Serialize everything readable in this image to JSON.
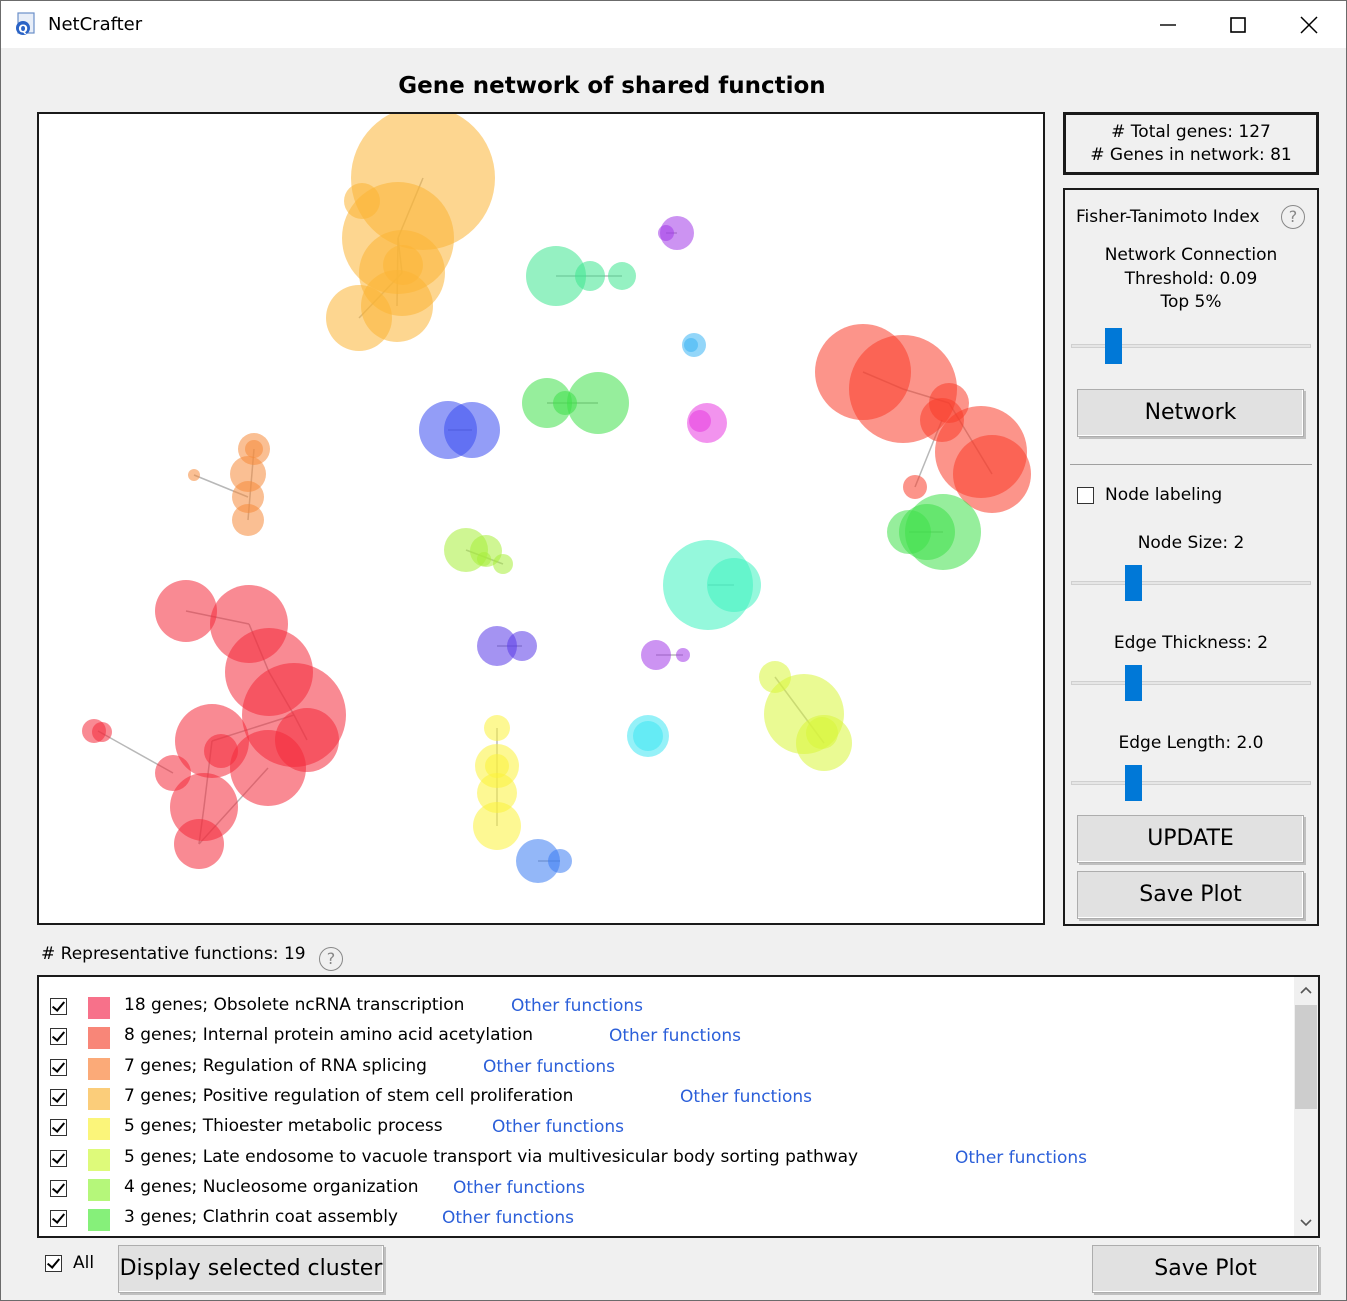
{
  "window": {
    "title": "NetCrafter"
  },
  "plot": {
    "title": "Gene network of shared function"
  },
  "stats": {
    "total_genes": "# Total genes: 127",
    "genes_in_network": "# Genes in network: 81"
  },
  "controls": {
    "index_label": "Fisher-Tanimoto Index",
    "threshold_line1": "Network Connection",
    "threshold_line2": "Threshold: 0.09",
    "threshold_line3": "Top 5%",
    "network_button": "Network",
    "node_labeling": "Node labeling",
    "node_labeling_checked": false,
    "node_size_label": "Node Size: 2",
    "edge_thickness_label": "Edge Thickness: 2",
    "edge_length_label": "Edge Length: 2.0",
    "update_button": "UPDATE",
    "save_plot_button": "Save Plot",
    "help_symbol": "?"
  },
  "functions": {
    "label": "# Representative functions: 19",
    "link_text": "Other functions",
    "items": [
      {
        "text": "18 genes; Obsolete ncRNA transcription",
        "color": "#f7718a",
        "checked": true
      },
      {
        "text": "8 genes; Internal protein amino acid acetylation",
        "color": "#f88678",
        "checked": true
      },
      {
        "text": "7 genes; Regulation of RNA splicing",
        "color": "#fbaa78",
        "checked": true
      },
      {
        "text": "7 genes; Positive regulation of stem cell proliferation",
        "color": "#fbcd7a",
        "checked": true
      },
      {
        "text": "5 genes; Thioester metabolic process",
        "color": "#fbf57a",
        "checked": true
      },
      {
        "text": "5 genes; Late endosome to vacuole transport via multivesicular body sorting pathway",
        "color": "#defa7a",
        "checked": true
      },
      {
        "text": "4 genes; Nucleosome organization",
        "color": "#b5f77a",
        "checked": true
      },
      {
        "text": "3 genes; Clathrin coat assembly",
        "color": "#86f07a",
        "checked": true
      }
    ]
  },
  "bottom": {
    "all_label": "All",
    "all_checked": true,
    "display_button": "Display selected cluster",
    "save_plot_button": "Save Plot"
  },
  "icons": [
    "app-icon",
    "minimize-icon",
    "maximize-icon",
    "close-icon",
    "help-icon",
    "scroll-up-icon",
    "scroll-down-icon"
  ],
  "clusters": [
    {
      "name": "cluster-orange-yellow",
      "color": "#fbb534"
    },
    {
      "name": "cluster-red",
      "color": "#f4293a"
    },
    {
      "name": "cluster-red-orange",
      "color": "#f93d2a"
    },
    {
      "name": "cluster-orange",
      "color": "#f68a3a"
    },
    {
      "name": "cluster-yellow",
      "color": "#fbf23a"
    },
    {
      "name": "cluster-lime",
      "color": "#d9f53a"
    },
    {
      "name": "cluster-yellowgreen",
      "color": "#a8ef3a"
    },
    {
      "name": "cluster-green",
      "color": "#3fe04a"
    },
    {
      "name": "cluster-mint",
      "color": "#3ee690"
    },
    {
      "name": "cluster-teal",
      "color": "#3ef2c0"
    },
    {
      "name": "cluster-cyan",
      "color": "#3ee6f2"
    },
    {
      "name": "cluster-skyblue",
      "color": "#3ab4f4"
    },
    {
      "name": "cluster-blue",
      "color": "#3a7cf2"
    },
    {
      "name": "cluster-indigo",
      "color": "#3a4cf0"
    },
    {
      "name": "cluster-violet",
      "color": "#5a3ae8"
    },
    {
      "name": "cluster-purple",
      "color": "#a23ae8"
    },
    {
      "name": "cluster-magenta",
      "color": "#e83ae0"
    }
  ]
}
